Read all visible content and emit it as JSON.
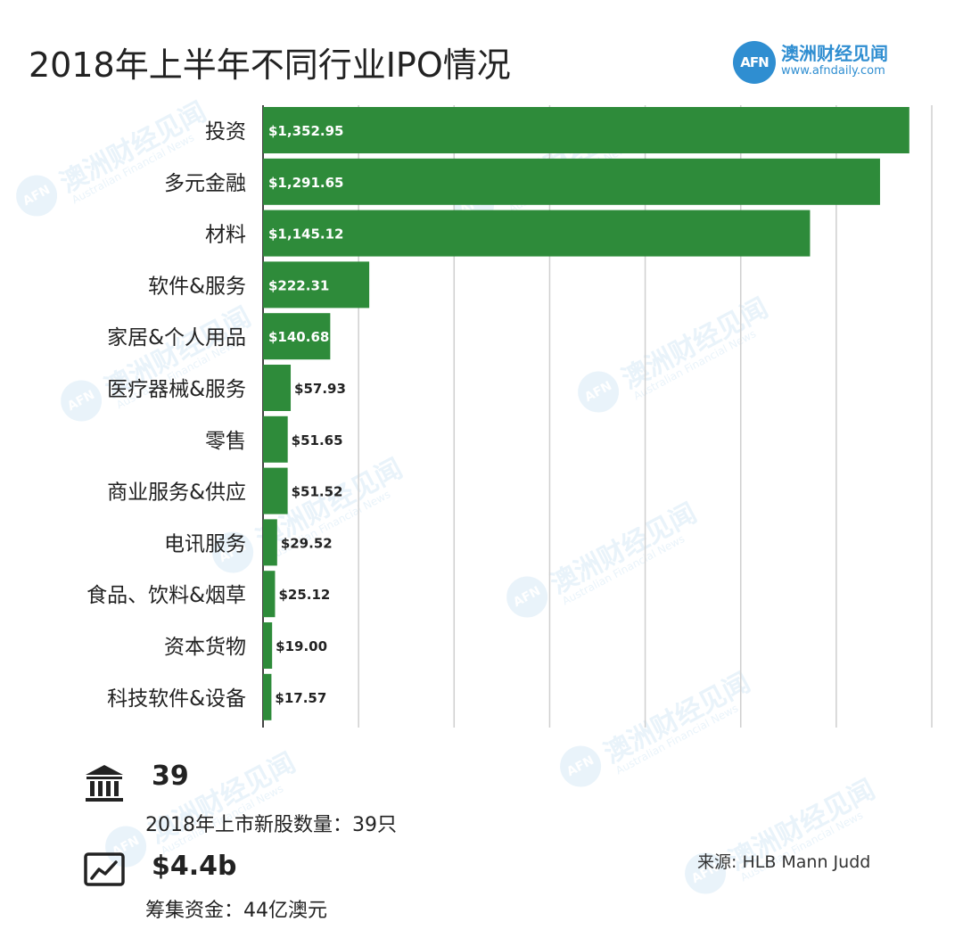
{
  "title": "2018年上半年不同行业IPO情况",
  "logo": {
    "mark": "AFN",
    "name": "澳洲财经见闻",
    "url": "www.afndaily.com"
  },
  "watermark": {
    "mark": "AFN",
    "name": "澳洲财经见闻",
    "sub": "Australian Financial News"
  },
  "chart_data": {
    "type": "bar",
    "orientation": "horizontal",
    "categories": [
      "投资",
      "多元金融",
      "材料",
      "软件&服务",
      "家居&个人用品",
      "医疗器械&服务",
      "零售",
      "商业服务&供应",
      "电讯服务",
      "食品、饮料&烟草",
      "资本货物",
      "科技软件&设备"
    ],
    "values": [
      1352.95,
      1291.65,
      1145.12,
      222.31,
      140.68,
      57.93,
      51.65,
      51.52,
      29.52,
      25.12,
      19.0,
      17.57
    ],
    "value_labels": [
      "$1,352.95",
      "$1,291.65",
      "$1,145.12",
      "$222.31",
      "$140.68",
      "$57.93",
      "$51.65",
      "$51.52",
      "$29.52",
      "$25.12",
      "$19.00",
      "$17.57"
    ],
    "xlim": [
      0,
      1400
    ],
    "grid": true,
    "bar_color": "#2e8b3a"
  },
  "stats": {
    "count_value": "39",
    "count_label": "2018年上市新股数量：39只",
    "funds_value": "$4.4b",
    "funds_label": "筹集资金：44亿澳元"
  },
  "source": "来源: HLB Mann Judd",
  "icons": {
    "count": "bank-icon",
    "funds": "line-chart-icon"
  }
}
